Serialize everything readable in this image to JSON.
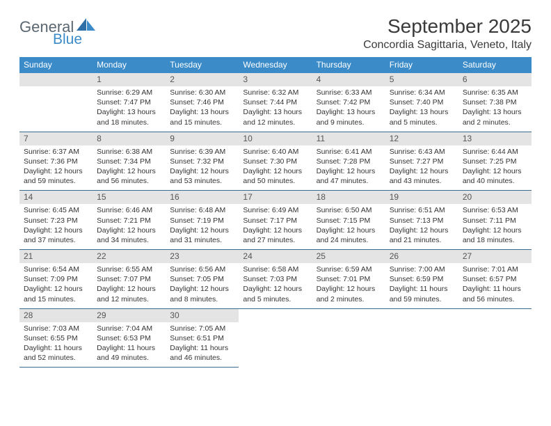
{
  "colors": {
    "header_bg": "#3b8bc9",
    "header_text": "#ffffff",
    "daynum_bg": "#e4e4e4",
    "daynum_text": "#555555",
    "border": "#3b6a8f",
    "body_text": "#333333",
    "title_text": "#3a3a3a",
    "logo_gray": "#5a6670",
    "logo_blue": "#3b8bc9"
  },
  "logo": {
    "word1": "General",
    "word2": "Blue"
  },
  "title": "September 2025",
  "location": "Concordia Sagittaria, Veneto, Italy",
  "weekdays": [
    "Sunday",
    "Monday",
    "Tuesday",
    "Wednesday",
    "Thursday",
    "Friday",
    "Saturday"
  ],
  "layout": {
    "leading_blanks": 1,
    "days_in_month": 30,
    "rows": 5,
    "cols": 7
  },
  "days": [
    {
      "n": 1,
      "sunrise": "6:29 AM",
      "sunset": "7:47 PM",
      "daylight": "13 hours and 18 minutes."
    },
    {
      "n": 2,
      "sunrise": "6:30 AM",
      "sunset": "7:46 PM",
      "daylight": "13 hours and 15 minutes."
    },
    {
      "n": 3,
      "sunrise": "6:32 AM",
      "sunset": "7:44 PM",
      "daylight": "13 hours and 12 minutes."
    },
    {
      "n": 4,
      "sunrise": "6:33 AM",
      "sunset": "7:42 PM",
      "daylight": "13 hours and 9 minutes."
    },
    {
      "n": 5,
      "sunrise": "6:34 AM",
      "sunset": "7:40 PM",
      "daylight": "13 hours and 5 minutes."
    },
    {
      "n": 6,
      "sunrise": "6:35 AM",
      "sunset": "7:38 PM",
      "daylight": "13 hours and 2 minutes."
    },
    {
      "n": 7,
      "sunrise": "6:37 AM",
      "sunset": "7:36 PM",
      "daylight": "12 hours and 59 minutes."
    },
    {
      "n": 8,
      "sunrise": "6:38 AM",
      "sunset": "7:34 PM",
      "daylight": "12 hours and 56 minutes."
    },
    {
      "n": 9,
      "sunrise": "6:39 AM",
      "sunset": "7:32 PM",
      "daylight": "12 hours and 53 minutes."
    },
    {
      "n": 10,
      "sunrise": "6:40 AM",
      "sunset": "7:30 PM",
      "daylight": "12 hours and 50 minutes."
    },
    {
      "n": 11,
      "sunrise": "6:41 AM",
      "sunset": "7:28 PM",
      "daylight": "12 hours and 47 minutes."
    },
    {
      "n": 12,
      "sunrise": "6:43 AM",
      "sunset": "7:27 PM",
      "daylight": "12 hours and 43 minutes."
    },
    {
      "n": 13,
      "sunrise": "6:44 AM",
      "sunset": "7:25 PM",
      "daylight": "12 hours and 40 minutes."
    },
    {
      "n": 14,
      "sunrise": "6:45 AM",
      "sunset": "7:23 PM",
      "daylight": "12 hours and 37 minutes."
    },
    {
      "n": 15,
      "sunrise": "6:46 AM",
      "sunset": "7:21 PM",
      "daylight": "12 hours and 34 minutes."
    },
    {
      "n": 16,
      "sunrise": "6:48 AM",
      "sunset": "7:19 PM",
      "daylight": "12 hours and 31 minutes."
    },
    {
      "n": 17,
      "sunrise": "6:49 AM",
      "sunset": "7:17 PM",
      "daylight": "12 hours and 27 minutes."
    },
    {
      "n": 18,
      "sunrise": "6:50 AM",
      "sunset": "7:15 PM",
      "daylight": "12 hours and 24 minutes."
    },
    {
      "n": 19,
      "sunrise": "6:51 AM",
      "sunset": "7:13 PM",
      "daylight": "12 hours and 21 minutes."
    },
    {
      "n": 20,
      "sunrise": "6:53 AM",
      "sunset": "7:11 PM",
      "daylight": "12 hours and 18 minutes."
    },
    {
      "n": 21,
      "sunrise": "6:54 AM",
      "sunset": "7:09 PM",
      "daylight": "12 hours and 15 minutes."
    },
    {
      "n": 22,
      "sunrise": "6:55 AM",
      "sunset": "7:07 PM",
      "daylight": "12 hours and 12 minutes."
    },
    {
      "n": 23,
      "sunrise": "6:56 AM",
      "sunset": "7:05 PM",
      "daylight": "12 hours and 8 minutes."
    },
    {
      "n": 24,
      "sunrise": "6:58 AM",
      "sunset": "7:03 PM",
      "daylight": "12 hours and 5 minutes."
    },
    {
      "n": 25,
      "sunrise": "6:59 AM",
      "sunset": "7:01 PM",
      "daylight": "12 hours and 2 minutes."
    },
    {
      "n": 26,
      "sunrise": "7:00 AM",
      "sunset": "6:59 PM",
      "daylight": "11 hours and 59 minutes."
    },
    {
      "n": 27,
      "sunrise": "7:01 AM",
      "sunset": "6:57 PM",
      "daylight": "11 hours and 56 minutes."
    },
    {
      "n": 28,
      "sunrise": "7:03 AM",
      "sunset": "6:55 PM",
      "daylight": "11 hours and 52 minutes."
    },
    {
      "n": 29,
      "sunrise": "7:04 AM",
      "sunset": "6:53 PM",
      "daylight": "11 hours and 49 minutes."
    },
    {
      "n": 30,
      "sunrise": "7:05 AM",
      "sunset": "6:51 PM",
      "daylight": "11 hours and 46 minutes."
    }
  ],
  "labels": {
    "sunrise_prefix": "Sunrise: ",
    "sunset_prefix": "Sunset: ",
    "daylight_prefix": "Daylight: "
  }
}
